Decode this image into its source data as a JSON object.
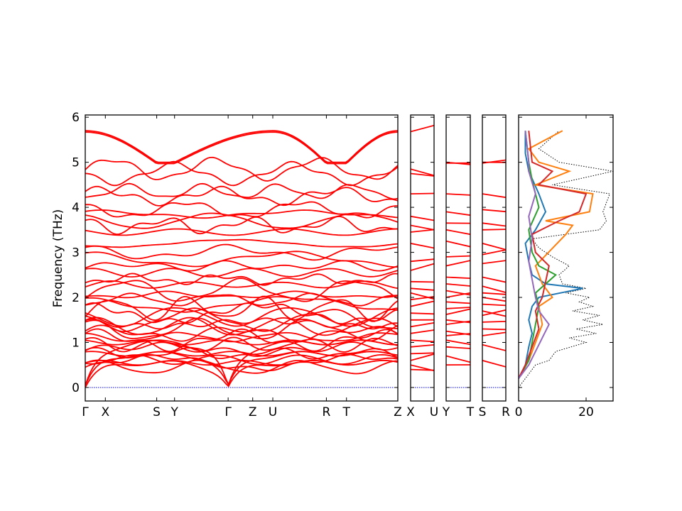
{
  "chart_data": {
    "type": "line",
    "title": "",
    "ylabel": "Frequency (THz)",
    "ylim": [
      -0.3,
      6.05
    ],
    "yticks": [
      0,
      1,
      2,
      3,
      4,
      5,
      6
    ],
    "band_color": "#ff0000",
    "zero_line_color": "#0000ff",
    "panels": [
      {
        "name": "main-path",
        "xlim": [
          0,
          14
        ],
        "ticks": [
          {
            "x": 0,
            "label": "Γ"
          },
          {
            "x": 0.9,
            "label": "X"
          },
          {
            "x": 3.2,
            "label": "S"
          },
          {
            "x": 4.0,
            "label": "Y"
          },
          {
            "x": 6.4,
            "label": "Γ"
          },
          {
            "x": 7.5,
            "label": "Z"
          },
          {
            "x": 8.4,
            "label": "U"
          },
          {
            "x": 10.8,
            "label": "R"
          },
          {
            "x": 11.7,
            "label": "T"
          },
          {
            "x": 14,
            "label": "Z"
          }
        ]
      },
      {
        "name": "x-u",
        "xlim": [
          0,
          1
        ],
        "ticks": [
          {
            "x": 0,
            "label": "X"
          },
          {
            "x": 1,
            "label": "U"
          }
        ]
      },
      {
        "name": "y-t",
        "xlim": [
          0,
          1
        ],
        "ticks": [
          {
            "x": 0,
            "label": "Y"
          },
          {
            "x": 1,
            "label": "T"
          }
        ]
      },
      {
        "name": "s-r",
        "xlim": [
          0,
          1
        ],
        "ticks": [
          {
            "x": 0,
            "label": "S"
          },
          {
            "x": 1,
            "label": "R"
          }
        ]
      }
    ],
    "dos": {
      "xlim": [
        0,
        28
      ],
      "xticks": [
        {
          "x": 0,
          "label": "0"
        },
        {
          "x": 20,
          "label": "20"
        }
      ],
      "series": [
        {
          "color": "#000000",
          "style": "dotted",
          "points": [
            [
              0,
              0
            ],
            [
              3,
              0.3
            ],
            [
              5,
              0.5
            ],
            [
              9,
              0.6
            ],
            [
              11,
              0.8
            ],
            [
              20,
              1.0
            ],
            [
              15,
              1.1
            ],
            [
              23,
              1.2
            ],
            [
              17,
              1.3
            ],
            [
              25,
              1.4
            ],
            [
              19,
              1.5
            ],
            [
              24,
              1.6
            ],
            [
              16,
              1.7
            ],
            [
              22,
              1.8
            ],
            [
              18,
              1.9
            ],
            [
              21,
              2.0
            ],
            [
              14,
              2.1
            ],
            [
              20,
              2.2
            ],
            [
              13,
              2.3
            ],
            [
              12,
              2.5
            ],
            [
              15,
              2.7
            ],
            [
              10,
              2.9
            ],
            [
              6,
              3.1
            ],
            [
              4,
              3.3
            ],
            [
              24,
              3.5
            ],
            [
              26,
              3.7
            ],
            [
              25,
              3.9
            ],
            [
              26,
              4.1
            ],
            [
              27,
              4.3
            ],
            [
              10,
              4.5
            ],
            [
              28,
              4.8
            ],
            [
              12,
              5.0
            ],
            [
              6,
              5.3
            ],
            [
              12,
              5.7
            ]
          ]
        },
        {
          "color": "#1f77b4",
          "style": "solid",
          "points": [
            [
              0,
              0.2
            ],
            [
              2,
              0.5
            ],
            [
              3,
              0.9
            ],
            [
              4,
              1.2
            ],
            [
              3,
              1.5
            ],
            [
              4,
              1.8
            ],
            [
              6,
              2.0
            ],
            [
              19,
              2.2
            ],
            [
              8,
              2.3
            ],
            [
              4,
              2.5
            ],
            [
              3,
              2.8
            ],
            [
              2,
              3.2
            ],
            [
              5,
              3.5
            ],
            [
              8,
              3.9
            ],
            [
              6,
              4.3
            ],
            [
              3,
              4.8
            ],
            [
              2,
              5.2
            ],
            [
              2,
              5.7
            ]
          ]
        },
        {
          "color": "#ff7f0e",
          "style": "solid",
          "points": [
            [
              0,
              0.2
            ],
            [
              3,
              0.6
            ],
            [
              5,
              1.0
            ],
            [
              7,
              1.4
            ],
            [
              6,
              1.8
            ],
            [
              10,
              2.0
            ],
            [
              7,
              2.3
            ],
            [
              5,
              2.7
            ],
            [
              14,
              3.4
            ],
            [
              16,
              3.6
            ],
            [
              8,
              3.7
            ],
            [
              21,
              3.9
            ],
            [
              22,
              4.3
            ],
            [
              5,
              4.5
            ],
            [
              15,
              4.8
            ],
            [
              6,
              5.0
            ],
            [
              3,
              5.3
            ],
            [
              13,
              5.7
            ]
          ]
        },
        {
          "color": "#2ca02c",
          "style": "solid",
          "points": [
            [
              0,
              0.2
            ],
            [
              3,
              0.6
            ],
            [
              4,
              1.0
            ],
            [
              5,
              1.4
            ],
            [
              6,
              1.8
            ],
            [
              5,
              2.1
            ],
            [
              11,
              2.5
            ],
            [
              6,
              2.7
            ],
            [
              4,
              3.0
            ],
            [
              3,
              3.5
            ],
            [
              6,
              4.0
            ],
            [
              4,
              4.6
            ],
            [
              3,
              5.0
            ],
            [
              2,
              5.7
            ]
          ]
        },
        {
          "color": "#d62728",
          "style": "solid",
          "points": [
            [
              0,
              0.2
            ],
            [
              2,
              0.5
            ],
            [
              4,
              0.9
            ],
            [
              6,
              1.3
            ],
            [
              5,
              1.7
            ],
            [
              7,
              2.0
            ],
            [
              9,
              2.7
            ],
            [
              5,
              3.0
            ],
            [
              4,
              3.4
            ],
            [
              12,
              3.7
            ],
            [
              18,
              3.9
            ],
            [
              20,
              4.3
            ],
            [
              6,
              4.5
            ],
            [
              10,
              4.8
            ],
            [
              4,
              5.0
            ],
            [
              3,
              5.7
            ]
          ]
        },
        {
          "color": "#9467bd",
          "style": "solid",
          "points": [
            [
              0,
              0.2
            ],
            [
              3,
              0.5
            ],
            [
              5,
              0.8
            ],
            [
              7,
              1.1
            ],
            [
              9,
              1.4
            ],
            [
              6,
              1.7
            ],
            [
              5,
              2.0
            ],
            [
              4,
              2.4
            ],
            [
              3,
              2.8
            ],
            [
              4,
              3.3
            ],
            [
              3,
              3.8
            ],
            [
              5,
              4.3
            ],
            [
              3,
              4.8
            ],
            [
              3,
              5.0
            ],
            [
              2,
              5.7
            ]
          ]
        }
      ]
    }
  }
}
